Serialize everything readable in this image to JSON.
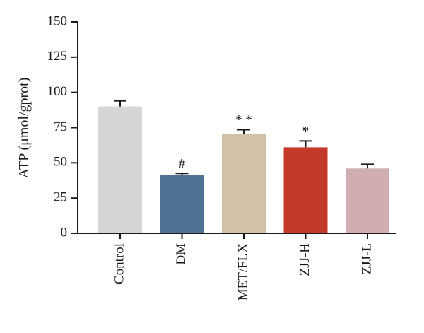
{
  "chart_data": {
    "type": "bar",
    "title": "",
    "xlabel": "",
    "ylabel": "ATP (μmol/gprot)",
    "ylim": [
      0,
      150
    ],
    "yticks": [
      0,
      25,
      50,
      75,
      100,
      125,
      150
    ],
    "grid": false,
    "categories": [
      "Control",
      "DM",
      "MET/FLX",
      "ZJJ-H",
      "ZJJ-L"
    ],
    "values": [
      90,
      41.5,
      70.5,
      61,
      46
    ],
    "errors": [
      4,
      1,
      3,
      4.5,
      3
    ],
    "annotations": [
      "",
      "#",
      "**",
      "*",
      ""
    ],
    "colors": [
      "#d6d6d6",
      "#4e7294",
      "#d3c0a8",
      "#c43a2a",
      "#cfadb0"
    ]
  }
}
